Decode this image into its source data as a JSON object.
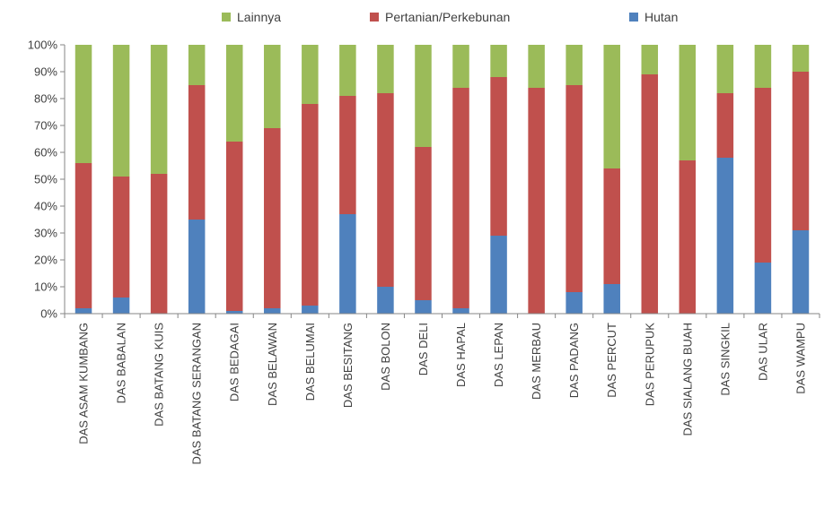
{
  "chart_data": {
    "type": "bar",
    "stacked": true,
    "percent": true,
    "categories": [
      "DAS ASAM KUMBANG",
      "DAS BABALAN",
      "DAS BATANG KUIS",
      "DAS BATANG SERANGAN",
      "DAS BEDAGAI",
      "DAS BELAWAN",
      "DAS BELUMAI",
      "DAS BESITANG",
      "DAS BOLON",
      "DAS DELI",
      "DAS HAPAL",
      "DAS LEPAN",
      "DAS MERBAU",
      "DAS PADANG",
      "DAS PERCUT",
      "DAS PERUPUK",
      "DAS SIALANG BUAH",
      "DAS SINGKIL",
      "DAS ULAR",
      "DAS WAMPU"
    ],
    "series": [
      {
        "name": "Hutan",
        "color": "#4f81bd",
        "values": [
          2,
          6,
          0,
          35,
          1,
          2,
          3,
          37,
          10,
          5,
          2,
          29,
          0,
          8,
          11,
          0,
          0,
          58,
          19,
          31
        ]
      },
      {
        "name": "Pertanian/Perkebunan",
        "color": "#c0504d",
        "values": [
          54,
          45,
          52,
          50,
          63,
          67,
          75,
          44,
          72,
          57,
          82,
          59,
          84,
          77,
          43,
          89,
          57,
          24,
          65,
          59
        ]
      },
      {
        "name": "Lainnya",
        "color": "#9bbb59",
        "values": [
          44,
          49,
          48,
          15,
          36,
          31,
          22,
          19,
          18,
          38,
          16,
          12,
          16,
          15,
          46,
          11,
          43,
          18,
          16,
          10
        ]
      }
    ],
    "legend_order": [
      "Lainnya",
      "Pertanian/Perkebunan",
      "Hutan"
    ],
    "legend_position": "top",
    "ylim": [
      0,
      100
    ],
    "yticks": [
      "0%",
      "10%",
      "20%",
      "30%",
      "40%",
      "50%",
      "60%",
      "70%",
      "80%",
      "90%",
      "100%"
    ],
    "grid": false,
    "title": "",
    "xlabel": "",
    "ylabel": ""
  }
}
